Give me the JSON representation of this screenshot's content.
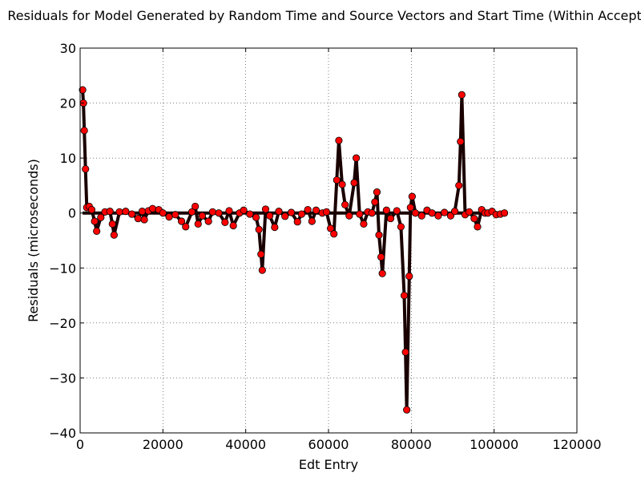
{
  "chart_data": {
    "type": "scatter",
    "title": "Residuals for Model Generated by Random Time and Source Vectors and Start Time (Within Accepta",
    "xlabel": "Edt Entry",
    "ylabel": "Residuals (microseconds)",
    "xlim": [
      0,
      120000
    ],
    "ylim": [
      -40,
      30
    ],
    "x_ticks": [
      0,
      20000,
      40000,
      60000,
      80000,
      100000,
      120000
    ],
    "y_ticks": [
      -40,
      -30,
      -20,
      -10,
      0,
      10,
      20,
      30
    ],
    "grid": true,
    "marker_color": "#ff0000",
    "marker_edge_color": "#000000",
    "series": [
      {
        "values": [
          [
            600,
            22.4
          ],
          [
            800,
            20
          ],
          [
            1000,
            15
          ],
          [
            1300,
            8
          ],
          [
            1600,
            1.0
          ],
          [
            2200,
            1.2
          ],
          [
            2800,
            0.6
          ],
          [
            3500,
            -1.5
          ],
          [
            4000,
            -3.3
          ],
          [
            5000,
            -0.8
          ],
          [
            6000,
            0.2
          ],
          [
            7200,
            0.3
          ],
          [
            7800,
            -2.0
          ],
          [
            8200,
            -4.0
          ],
          [
            9500,
            0.2
          ],
          [
            11000,
            0.3
          ],
          [
            12500,
            -0.2
          ],
          [
            14000,
            -1.0
          ],
          [
            15000,
            0.3
          ],
          [
            15500,
            -1.2
          ],
          [
            16500,
            0.4
          ],
          [
            17500,
            0.8
          ],
          [
            19000,
            0.6
          ],
          [
            20000,
            0.0
          ],
          [
            21500,
            -0.7
          ],
          [
            23000,
            -0.3
          ],
          [
            24500,
            -1.5
          ],
          [
            25500,
            -2.5
          ],
          [
            27000,
            0.2
          ],
          [
            27800,
            1.2
          ],
          [
            28500,
            -2.0
          ],
          [
            29500,
            -0.5
          ],
          [
            31000,
            -1.5
          ],
          [
            32000,
            0.2
          ],
          [
            33500,
            0.0
          ],
          [
            35000,
            -1.7
          ],
          [
            36000,
            0.4
          ],
          [
            37000,
            -2.3
          ],
          [
            38500,
            0.0
          ],
          [
            39500,
            0.5
          ],
          [
            41000,
            -0.2
          ],
          [
            42500,
            -0.8
          ],
          [
            43200,
            -3.0
          ],
          [
            43700,
            -7.5
          ],
          [
            44000,
            -10.4
          ],
          [
            44800,
            0.7
          ],
          [
            45800,
            -0.5
          ],
          [
            47000,
            -2.6
          ],
          [
            48000,
            0.3
          ],
          [
            49500,
            -0.6
          ],
          [
            51000,
            0.1
          ],
          [
            52500,
            -1.6
          ],
          [
            53500,
            -0.2
          ],
          [
            55000,
            0.6
          ],
          [
            56000,
            -1.5
          ],
          [
            57000,
            0.5
          ],
          [
            58500,
            0.0
          ],
          [
            59500,
            0.2
          ],
          [
            60500,
            -2.8
          ],
          [
            61300,
            -3.8
          ],
          [
            62000,
            6.0
          ],
          [
            62500,
            13.2
          ],
          [
            63300,
            5.2
          ],
          [
            64000,
            1.5
          ],
          [
            65000,
            -0.5
          ],
          [
            66200,
            5.5
          ],
          [
            66700,
            10.0
          ],
          [
            67500,
            -0.2
          ],
          [
            68500,
            -2.0
          ],
          [
            69500,
            0.2
          ],
          [
            70500,
            0.0
          ],
          [
            71200,
            2.0
          ],
          [
            71700,
            3.8
          ],
          [
            72200,
            -4.0
          ],
          [
            72700,
            -8.0
          ],
          [
            73000,
            -11.0
          ],
          [
            74000,
            0.5
          ],
          [
            75000,
            -1.0
          ],
          [
            76500,
            0.4
          ],
          [
            77500,
            -2.5
          ],
          [
            78300,
            -15.0
          ],
          [
            78600,
            -25.3
          ],
          [
            78900,
            -35.8
          ],
          [
            79500,
            -11.5
          ],
          [
            79800,
            1.0
          ],
          [
            80200,
            3.0
          ],
          [
            81000,
            0.0
          ],
          [
            82500,
            -0.5
          ],
          [
            83800,
            0.5
          ],
          [
            85000,
            0.0
          ],
          [
            86500,
            -0.5
          ],
          [
            88000,
            0.1
          ],
          [
            89500,
            -0.5
          ],
          [
            90500,
            0.3
          ],
          [
            91500,
            5.0
          ],
          [
            91900,
            13.0
          ],
          [
            92200,
            21.5
          ],
          [
            93000,
            -0.3
          ],
          [
            94000,
            0.2
          ],
          [
            95200,
            -1.0
          ],
          [
            96000,
            -2.5
          ],
          [
            97000,
            0.6
          ],
          [
            97800,
            0.0
          ],
          [
            98500,
            0.0
          ],
          [
            99500,
            0.3
          ],
          [
            100500,
            -0.3
          ],
          [
            101500,
            -0.2
          ],
          [
            102500,
            0.0
          ]
        ]
      }
    ]
  }
}
